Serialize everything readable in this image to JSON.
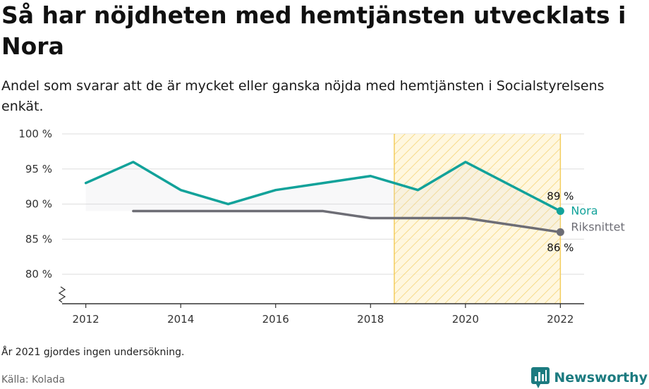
{
  "header": {
    "title": "Så har nöjdheten med hemtjänsten utvecklats i Nora",
    "subtitle": "Andel som svarar att de är mycket eller ganska nöjda med hemtjänsten i Socialstyrelsens enkät."
  },
  "footer": {
    "note": "År 2021 gjordes ingen undersökning.",
    "source": "Källa: Kolada",
    "brand": "Newsworthy"
  },
  "colors": {
    "nora": "#12a29a",
    "riks": "#6d6d75",
    "hatch": "#f3cd5e",
    "grid": "#dddddd",
    "axis": "#333333",
    "brand": "#1c7b80"
  },
  "chart_data": {
    "type": "line",
    "x": [
      2012,
      2013,
      2014,
      2015,
      2016,
      2017,
      2018,
      2019,
      2020,
      2022
    ],
    "series": [
      {
        "name": "Nora",
        "values": [
          93,
          96,
          92,
          90,
          92,
          93,
          94,
          92,
          96,
          89
        ],
        "color": "#12a29a"
      },
      {
        "name": "Riksnittet",
        "values": [
          null,
          89,
          89,
          89,
          89,
          89,
          88,
          88,
          88,
          86
        ],
        "color": "#6d6d75"
      }
    ],
    "end_labels": [
      {
        "series": "Nora",
        "text": "89 %"
      },
      {
        "series": "Riksnittet",
        "text": "86 %"
      }
    ],
    "xticks": [
      2012,
      2014,
      2016,
      2018,
      2020,
      2022
    ],
    "xtick_labels": [
      "2012",
      "2014",
      "2016",
      "2018",
      "2020",
      "2022"
    ],
    "yticks": [
      80,
      85,
      90,
      95,
      100
    ],
    "ytick_labels": [
      "80 %",
      "85 %",
      "90 %",
      "95 %",
      "100 %"
    ],
    "xlim": [
      2011.5,
      2022.5
    ],
    "ylim": [
      75.8,
      100
    ],
    "highlight_range": [
      2018.5,
      2022
    ],
    "grid": true,
    "axis_break": true
  }
}
